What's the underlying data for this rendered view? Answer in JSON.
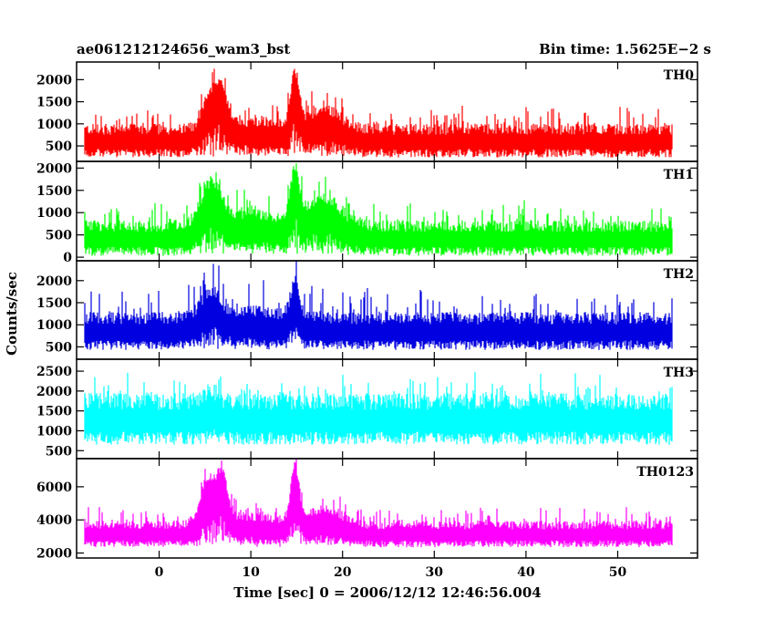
{
  "chart_data": {
    "type": "line",
    "title_left": "ae061212124656_wam3_bst",
    "title_right": "Bin time: 1.5625E−2 s",
    "xlabel": "Time [sec] 0 = 2006/12/12 12:46:56.004",
    "ylabel": "Counts/sec",
    "xlim": [
      -9.0,
      58.7
    ],
    "xticks": [
      0,
      10,
      20,
      30,
      40,
      50
    ],
    "x_start": -8.2,
    "x_end": 56.0,
    "bin_time": 0.015625,
    "series": [
      {
        "name": "TH0",
        "color": "#ff0000",
        "ylim": [
          150,
          2400
        ],
        "yticks": [
          500,
          1000,
          1500,
          2000
        ],
        "baseline": 620,
        "noise_amp": 380,
        "spike_amp": 450,
        "bursts": [
          {
            "t": 5.5,
            "w": 0.8,
            "h": 700
          },
          {
            "t": 6.8,
            "w": 0.6,
            "h": 750
          },
          {
            "t": 14.8,
            "w": 0.45,
            "h": 1200
          },
          {
            "t": 18.0,
            "w": 1.8,
            "h": 450
          },
          {
            "t": 10.0,
            "w": 3.0,
            "h": 180
          }
        ]
      },
      {
        "name": "TH1",
        "color": "#00ff00",
        "ylim": [
          -80,
          2150
        ],
        "yticks": [
          0,
          500,
          1000,
          1500,
          2000
        ],
        "baseline": 430,
        "noise_amp": 400,
        "spike_amp": 450,
        "bursts": [
          {
            "t": 5.7,
            "w": 1.1,
            "h": 900
          },
          {
            "t": 14.8,
            "w": 0.45,
            "h": 1100
          },
          {
            "t": 18.0,
            "w": 1.8,
            "h": 600
          },
          {
            "t": 10.5,
            "w": 3.5,
            "h": 250
          }
        ]
      },
      {
        "name": "TH2",
        "color": "#0000e0",
        "ylim": [
          220,
          2450
        ],
        "yticks": [
          500,
          1000,
          1500,
          2000
        ],
        "baseline": 860,
        "noise_amp": 430,
        "spike_amp": 600,
        "bursts": [
          {
            "t": 5.6,
            "w": 1.0,
            "h": 550
          },
          {
            "t": 14.8,
            "w": 0.45,
            "h": 800
          },
          {
            "t": 10.0,
            "w": 4.0,
            "h": 150
          }
        ]
      },
      {
        "name": "TH3",
        "color": "#00ffff",
        "ylim": [
          300,
          2800
        ],
        "yticks": [
          500,
          1000,
          1500,
          2000,
          2500
        ],
        "baseline": 1300,
        "noise_amp": 650,
        "spike_amp": 650,
        "bursts": [
          {
            "t": 5.6,
            "w": 0.8,
            "h": 200
          }
        ]
      },
      {
        "name": "TH0123",
        "color": "#ff00ff",
        "ylim": [
          1700,
          7700
        ],
        "yticks": [
          2000,
          4000,
          6000
        ],
        "baseline": 3150,
        "noise_amp": 800,
        "spike_amp": 900,
        "bursts": [
          {
            "t": 5.3,
            "w": 0.8,
            "h": 2600
          },
          {
            "t": 6.9,
            "w": 0.6,
            "h": 2600
          },
          {
            "t": 14.8,
            "w": 0.45,
            "h": 3200
          },
          {
            "t": 18.0,
            "w": 1.8,
            "h": 900
          },
          {
            "t": 10.0,
            "w": 3.5,
            "h": 500
          }
        ]
      }
    ]
  }
}
